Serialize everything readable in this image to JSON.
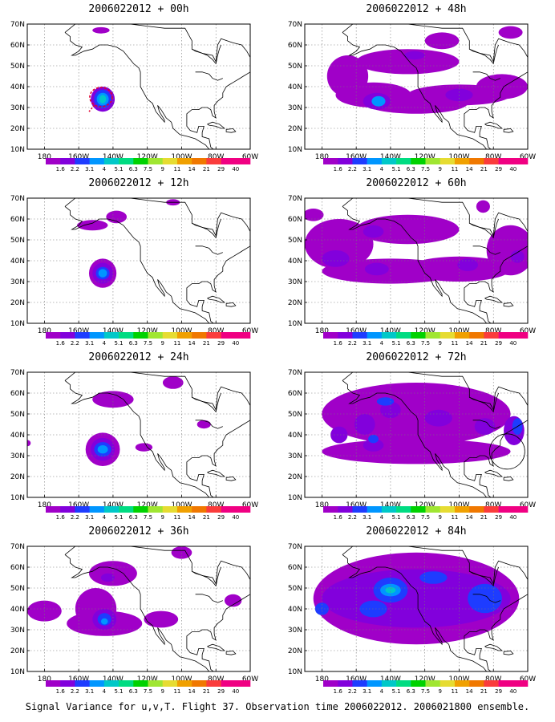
{
  "panels": [
    {
      "title": "2006022012 + 00h"
    },
    {
      "title": "2006022012 + 48h"
    },
    {
      "title": "2006022012 + 12h"
    },
    {
      "title": "2006022012 + 60h"
    },
    {
      "title": "2006022012 + 24h"
    },
    {
      "title": "2006022012 + 72h"
    },
    {
      "title": "2006022012 + 36h"
    },
    {
      "title": "2006022012 + 84h"
    }
  ],
  "y_labels": [
    "70N",
    "60N",
    "50N",
    "40N",
    "30N",
    "20N",
    "10N"
  ],
  "x_labels": [
    "180",
    "160W",
    "140W",
    "120W",
    "100W",
    "80W",
    "60W"
  ],
  "colorbar": {
    "labels": [
      "1.6",
      "2.2",
      "3.1",
      "4",
      "5.1",
      "6.3",
      "7.5",
      "9",
      "11",
      "14",
      "21",
      "29",
      "40"
    ],
    "colors": [
      "#a000c8",
      "#8200dc",
      "#1e3cff",
      "#0096ff",
      "#00c8c8",
      "#00dc82",
      "#00d200",
      "#a0e632",
      "#e6dc32",
      "#f0a000",
      "#f07800",
      "#fa3c3c",
      "#f00082"
    ]
  },
  "caption": "Signal Variance for u,v,T. Flight 37. Observation time 2006022012. 2006021800 ensemble."
}
